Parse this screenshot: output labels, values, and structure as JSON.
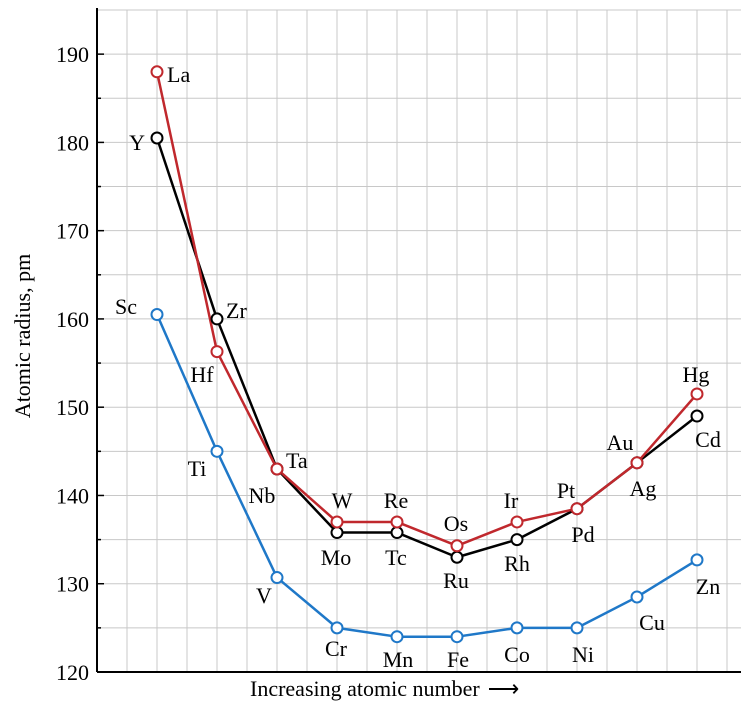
{
  "chart_data": {
    "type": "line",
    "xlabel": "Increasing atomic number",
    "xlabel_arrow": "⟶",
    "ylabel": "Atomic radius, pm",
    "ylim": [
      120,
      195
    ],
    "yticks": [
      120,
      130,
      140,
      150,
      160,
      170,
      180,
      190
    ],
    "grid": true,
    "legend": "none",
    "series": [
      {
        "color": "#1f78c8",
        "elements": [
          "Sc",
          "Ti",
          "V",
          "Cr",
          "Mn",
          "Fe",
          "Co",
          "Ni",
          "Cu",
          "Zn"
        ],
        "x": [
          1,
          2,
          3,
          4,
          5,
          6,
          7,
          8,
          9,
          10
        ],
        "values": [
          160.5,
          145,
          130.7,
          125,
          124,
          124,
          125,
          125,
          128.5,
          132.7
        ]
      },
      {
        "color": "#000000",
        "elements": [
          "Y",
          "Zr",
          "Nb",
          "Mo",
          "Tc",
          "Ru",
          "Rh",
          "Pd",
          "Ag",
          "Cd"
        ],
        "x": [
          1,
          2,
          3,
          4,
          5,
          6,
          7,
          8,
          9,
          10
        ],
        "values": [
          180.5,
          160,
          143,
          135.8,
          135.8,
          133,
          135,
          138.5,
          143.7,
          149
        ]
      },
      {
        "color": "#c0282d",
        "elements": [
          "La",
          "Hf",
          "Ta",
          "W",
          "Re",
          "Os",
          "Ir",
          "Pt",
          "Au",
          "Hg"
        ],
        "x": [
          1,
          2,
          3,
          4,
          5,
          6,
          7,
          8,
          9,
          10
        ],
        "values": [
          188,
          156.3,
          143,
          137,
          137,
          134.3,
          137,
          138.5,
          143.7,
          151.5
        ]
      }
    ]
  }
}
